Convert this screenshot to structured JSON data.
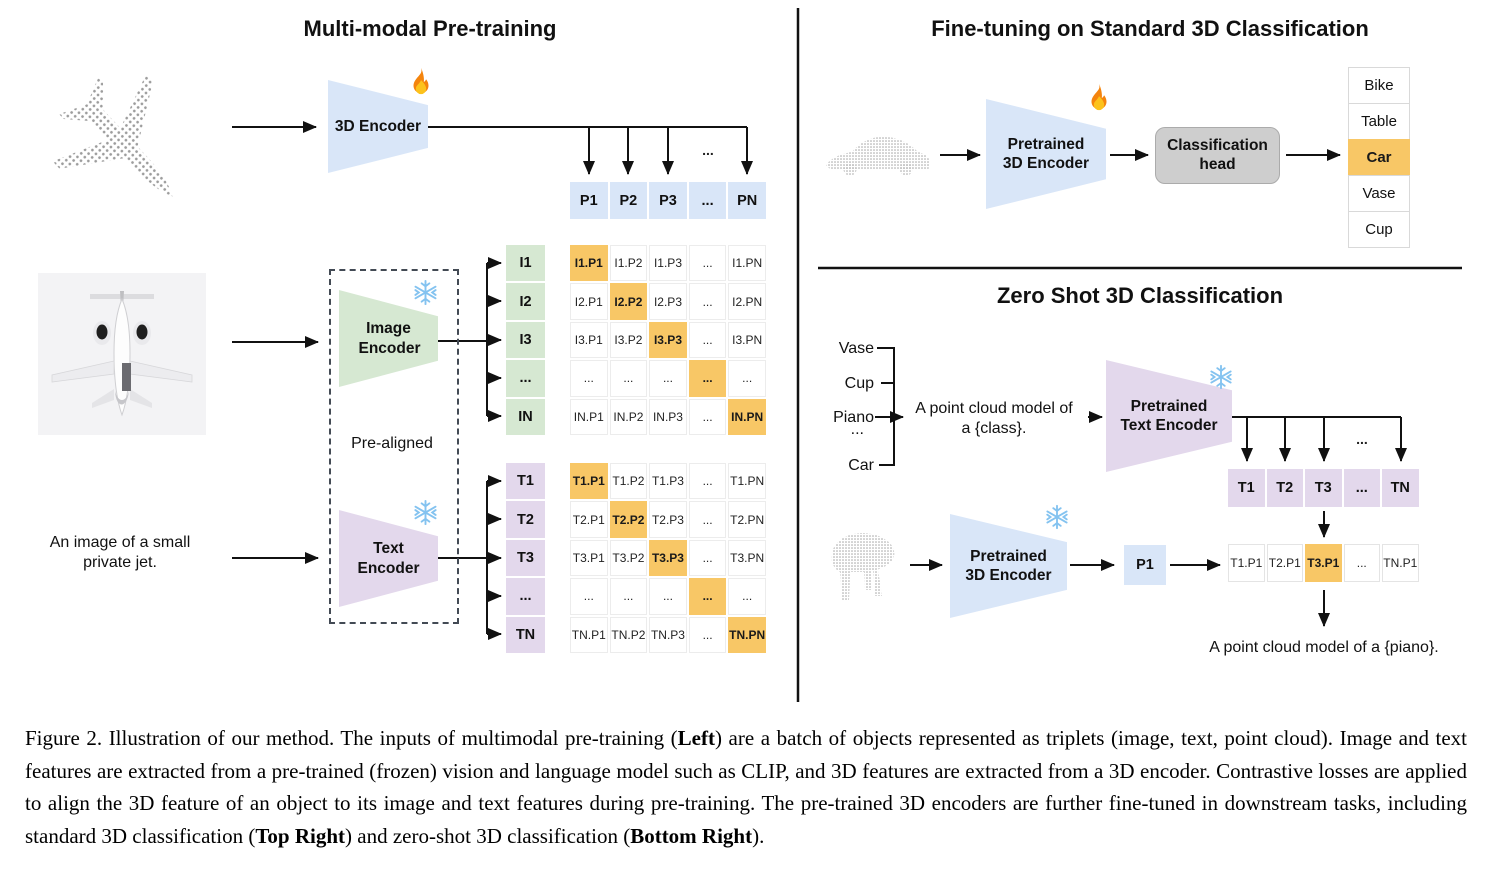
{
  "left": {
    "title": "Multi-modal Pre-training",
    "encoder_3d_label": "3D Encoder",
    "image_encoder_label": "Image Encoder",
    "text_encoder_label": "Text Encoder",
    "pre_aligned_label": "Pre-aligned",
    "image_caption_line1": "An image of a small",
    "image_caption_line2": "private jet.",
    "dots": "...",
    "p_row": [
      "P1",
      "P2",
      "P3",
      "...",
      "PN"
    ],
    "i_col": [
      "I1",
      "I2",
      "I3",
      "...",
      "IN"
    ],
    "t_col": [
      "T1",
      "T2",
      "T3",
      "...",
      "TN"
    ],
    "i_matrix": [
      [
        "I1.P1",
        "I1.P2",
        "I1.P3",
        "...",
        "I1.PN"
      ],
      [
        "I2.P1",
        "I2.P2",
        "I2.P3",
        "...",
        "I2.PN"
      ],
      [
        "I3.P1",
        "I3.P2",
        "I3.P3",
        "...",
        "I3.PN"
      ],
      [
        "...",
        "...",
        "...",
        "...",
        "..."
      ],
      [
        "IN.P1",
        "IN.P2",
        "IN.P3",
        "...",
        "IN.PN"
      ]
    ],
    "t_matrix": [
      [
        "T1.P1",
        "T1.P2",
        "T1.P3",
        "...",
        "T1.PN"
      ],
      [
        "T2.P1",
        "T2.P2",
        "T2.P3",
        "...",
        "T2.PN"
      ],
      [
        "T3.P1",
        "T3.P2",
        "T3.P3",
        "...",
        "T3.PN"
      ],
      [
        "...",
        "...",
        "...",
        "...",
        "..."
      ],
      [
        "TN.P1",
        "TN.P2",
        "TN.P3",
        "...",
        "TN.PN"
      ]
    ]
  },
  "top_right": {
    "title": "Fine-tuning on Standard 3D Classification",
    "encoder_label": "Pretrained 3D Encoder",
    "head_label": "Classification head",
    "classes": [
      "Bike",
      "Table",
      "Car",
      "Vase",
      "Cup"
    ],
    "highlighted_class": "Car"
  },
  "bottom_right": {
    "title": "Zero Shot 3D Classification",
    "class_prompts": [
      "Vase",
      "Cup",
      "Piano",
      "...",
      "Car"
    ],
    "prompt_line1": "A point cloud model of",
    "prompt_line2": "a {class}.",
    "text_encoder_label": "Pretrained Text Encoder",
    "encoder_label": "Pretrained 3D Encoder",
    "p1_label": "P1",
    "t_row": [
      "T1",
      "T2",
      "T3",
      "...",
      "TN"
    ],
    "tp_row": [
      "T1.P1",
      "T2.P1",
      "T3.P1",
      "...",
      "TN.P1"
    ],
    "highlight_index": 2,
    "result_text": "A point cloud model of a {piano}.",
    "dots": "..."
  },
  "colors": {
    "blue": "#d9e6f8",
    "green": "#d6e8d2",
    "purple": "#e3d8ec",
    "highlight": "#f8c766",
    "head_gray": "#cecece"
  },
  "caption": {
    "segments": [
      {
        "text": "Figure 2. Illustration of our method. The inputs of multimodal pre-training (",
        "bold": false
      },
      {
        "text": "Left",
        "bold": true
      },
      {
        "text": ") are a batch of objects represented as triplets (image, text, point cloud). Image and text features are extracted from a pre-trained (frozen) vision and language model such as CLIP, and 3D features are extracted from a 3D encoder. Contrastive losses are applied to align the 3D feature of an object to its image and text features during pre-training. The pre-trained 3D encoders are further fine-tuned in downstream tasks, including standard 3D classification (",
        "bold": false
      },
      {
        "text": "Top Right",
        "bold": true
      },
      {
        "text": ") and zero-shot 3D classification (",
        "bold": false
      },
      {
        "text": "Bottom Right",
        "bold": true
      },
      {
        "text": ").",
        "bold": false
      }
    ]
  }
}
